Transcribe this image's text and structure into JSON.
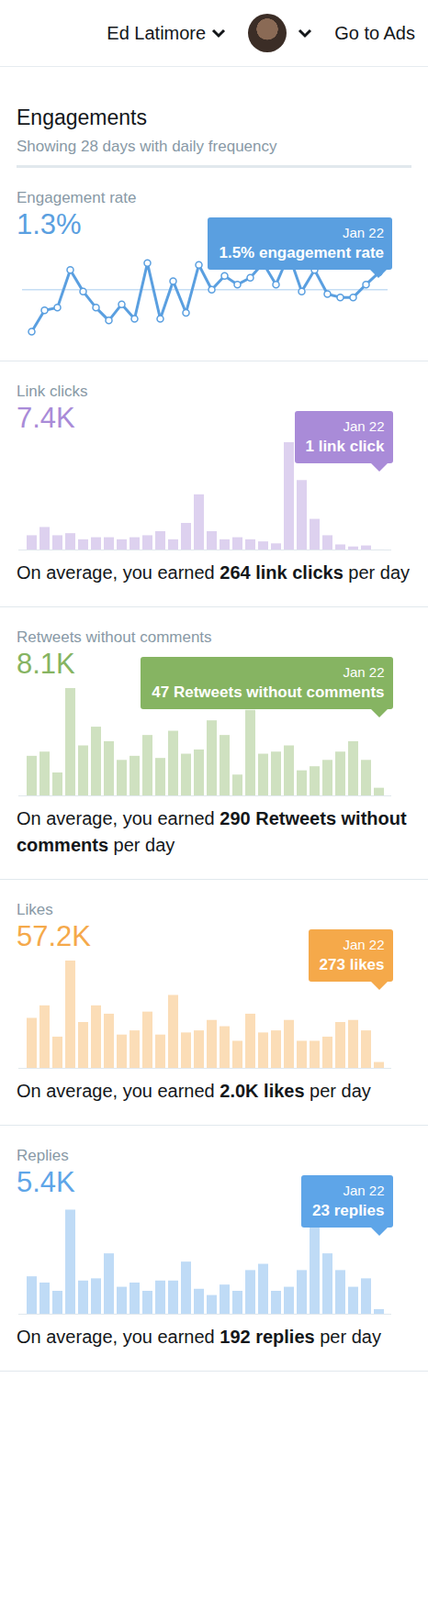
{
  "header": {
    "account": "Ed Latimore",
    "link": "Go to Ads"
  },
  "title": "Engagements",
  "subtitle": "Showing 28 days with daily frequency",
  "chart_data": [
    {
      "type": "line",
      "title": "Engagement rate",
      "total": "1.3%",
      "average": 1.3,
      "color": "#5a9fe0",
      "marker": "circle",
      "tick_labels": false,
      "values": [
        0.81,
        1.06,
        1.09,
        1.53,
        1.28,
        1.09,
        0.94,
        1.13,
        0.96,
        1.61,
        0.96,
        1.4,
        1.03,
        1.59,
        1.3,
        1.46,
        1.36,
        1.44,
        1.61,
        1.36,
        1.71,
        1.28,
        1.53,
        1.25,
        1.21,
        1.21,
        1.36,
        1.5
      ],
      "annotation": {
        "date": "Jan 22",
        "text": "1.5% engagement rate"
      }
    },
    {
      "type": "bar",
      "title": "Link clicks",
      "total": "7.4K",
      "color": "#a98bd8",
      "tick_labels": false,
      "values": [
        193,
        304,
        193,
        221,
        138,
        166,
        166,
        138,
        166,
        193,
        248,
        138,
        359,
        745,
        248,
        138,
        166,
        138,
        110,
        83,
        1449,
        938,
        414,
        193,
        69,
        41,
        55,
        1
      ],
      "annotation": {
        "date": "Jan 22",
        "text": "1 link click"
      },
      "caption": {
        "text": "On average, you earned ",
        "bold": "264 link clicks",
        "after": " per day"
      }
    },
    {
      "type": "bar",
      "title": "Retweets without comments",
      "total": "8.1K",
      "color": "#86b462",
      "tick_labels": false,
      "values": [
        243,
        269,
        141,
        659,
        307,
        422,
        333,
        218,
        243,
        371,
        230,
        397,
        256,
        282,
        461,
        371,
        128,
        525,
        256,
        269,
        307,
        154,
        179,
        218,
        269,
        333,
        218,
        47
      ],
      "annotation": {
        "date": "Jan 22",
        "text": "47 Retweets without comments"
      },
      "caption": {
        "text": "On average, you earned ",
        "bold": "290 Retweets without comments",
        "after": " per day"
      }
    },
    {
      "type": "bar",
      "title": "Likes",
      "total": "57.2K",
      "color": "#f5a94a",
      "tick_labels": false,
      "values": [
        2314,
        2892,
        1446,
        4965,
        2121,
        2892,
        2506,
        1542,
        1735,
        2603,
        1542,
        3374,
        1639,
        1735,
        2217,
        1928,
        1253,
        2506,
        1639,
        1735,
        2217,
        1253,
        1253,
        1446,
        2121,
        2217,
        1735,
        273
      ],
      "annotation": {
        "date": "Jan 22",
        "text": "273 likes"
      },
      "caption": {
        "text": "On average, you earned ",
        "bold": "2.0K likes",
        "after": " per day"
      }
    },
    {
      "type": "bar",
      "title": "Replies",
      "total": "5.4K",
      "color": "#5ea5e8",
      "tick_labels": false,
      "values": [
        186,
        155,
        114,
        517,
        165,
        176,
        300,
        134,
        155,
        114,
        165,
        165,
        259,
        124,
        93,
        145,
        114,
        217,
        248,
        114,
        134,
        217,
        533,
        300,
        217,
        134,
        176,
        23
      ],
      "annotation": {
        "date": "Jan 22",
        "text": "23 replies"
      },
      "caption": {
        "text": "On average, you earned ",
        "bold": "192 replies",
        "after": " per day"
      }
    }
  ]
}
